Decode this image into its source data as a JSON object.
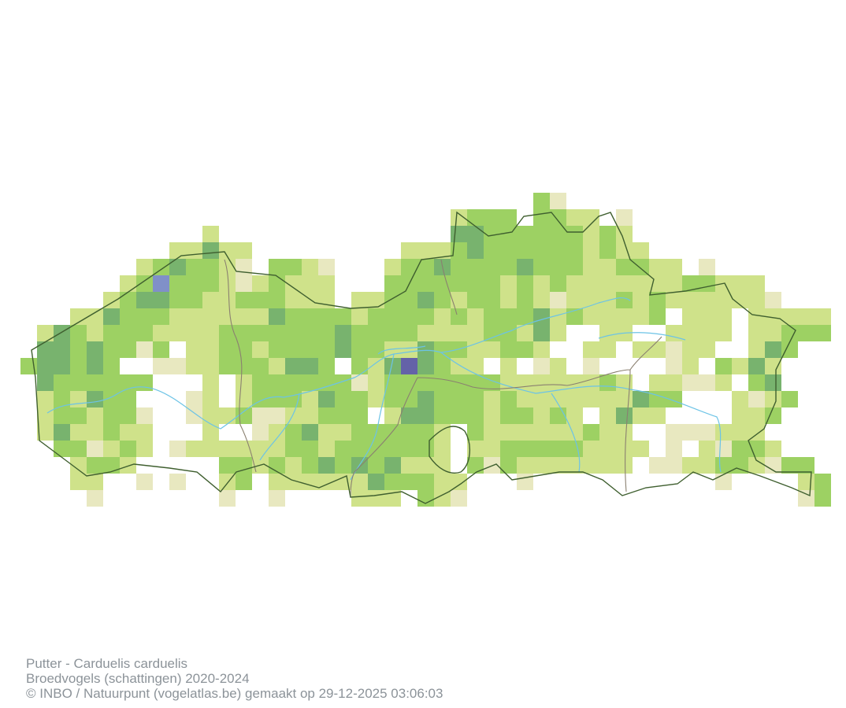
{
  "caption": {
    "species": "Putter - Carduelis carduelis",
    "dataset": "Broedvogels (schattingen) 2020-2024",
    "credit": "© INBO / Natuurpunt (vogelatlas.be) gemaakt op 29-12-2025 03:06:03"
  },
  "map_data": {
    "type": "grid-atlas",
    "colors": {
      "p": "#e8e8c0",
      "l": "#cfe28a",
      "m": "#9dd163",
      "d": "#78b36e",
      "b": "#8090c8",
      "v": "#6462a8",
      "border": "#3f5f2f",
      "inner_border": "#8a8070",
      "river": "#6cc3e6"
    },
    "first_row": 11,
    "rows": [
      "................................mp...............",
      "...........................lmmm.mmll.p...........",
      "............l..............ddmmmmmmlml...........",
      "..........lldll.........lllmdmmmmmmlmll..........",
      "........lmdmmlp.mmlp...lmmdmmmmdmmmllmmll.p......",
      ".......lmbmmmlplmlll...mmmmmmmlmlmlllllllmmlll....",
      "......lmddmmllmmmlll.llmmdmlmmlmlplllmlmllllllp...",
      "....lldmmmlllllldmmmmlmmmmlmlmmmdlmllllm.lll.lllll",
      "..ldmlmmmllllmmmmmmmdmmmmllllmmldl..ll..llll.llmmm",
      "..ddmdmmpm.llmmlmmmmdmmlldmmllmml..ll.llpll..ldm.",
      ".mddmdm..ppllmmmlddm.mldvdmll.l.pl.p....pl.mldl.",
      "..dmmmmmm...l.lmmmmmmplmmmmmmmllllllml.llppl.md..",
      "..lmldmm...pl.lmmmldmmlmmdmmmlmllllllldmm...lplm..",
      "..lmmlmmp..pllmppllmmm.lddmmmlmmlml.ldll....llm..",
      "..ldllmll...l..plmdllmmmmml.mllllllmll..ppplll...",
      "...mmplml.pllllllmmlmmmmmml.llmmmmmllll.p.lpmml...",
      "....lmml.....mmlmlmdmdmdlll.mpmlllllll.ppllmmlpmm",
      "....ll..p.p..lm.lllllldmmmll...p...........p....lm",
      ".....p.......p..p....lll.mlp....................pm"
    ]
  }
}
